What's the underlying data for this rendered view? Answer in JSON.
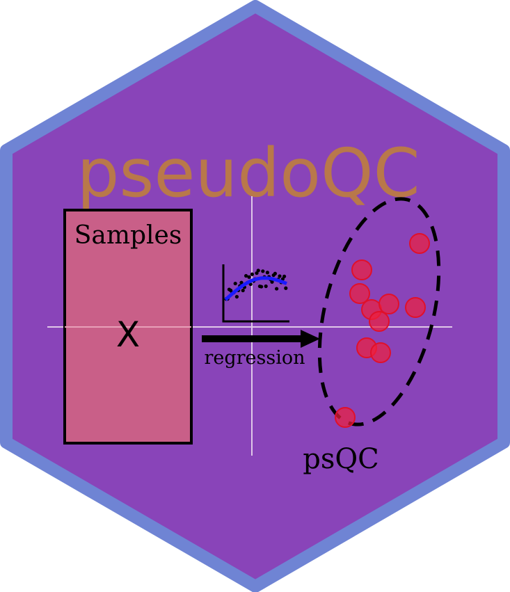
{
  "logo": {
    "title": "pseudoQC",
    "box_label": "Samples",
    "box_symbol": "X",
    "arrow_label": "regression",
    "cluster_label": "psQC"
  },
  "colors": {
    "hex_fill": "#8944b9",
    "hex_border": "#6f84d4",
    "title": "#b9784a",
    "box_fill": "#c95f88",
    "points": "#f0203c",
    "curve": "#1a1aff"
  },
  "icons": [
    "hexagon-badge",
    "scatter-plot-icon",
    "arrow-right-icon"
  ]
}
